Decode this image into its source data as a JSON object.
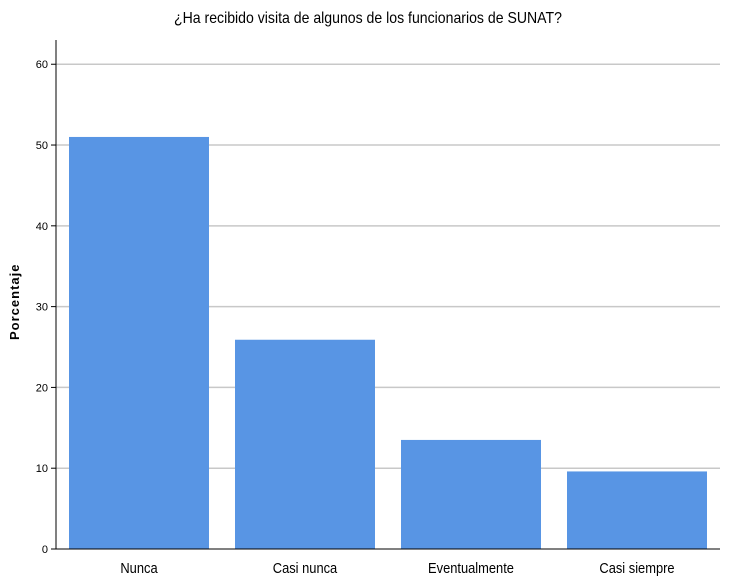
{
  "chart_data": {
    "type": "bar",
    "title": "¿Ha recibido visita de algunos de los funcionarios de SUNAT?",
    "xlabel": "",
    "ylabel": "Porcentaje",
    "categories": [
      "Nunca",
      "Casi nunca",
      "Eventualmente",
      "Casi siempre"
    ],
    "values": [
      51.0,
      25.9,
      13.5,
      9.6
    ],
    "ylim": [
      0,
      63
    ],
    "yticks": [
      0,
      10,
      20,
      30,
      40,
      50,
      60
    ],
    "grid": true,
    "bar_color": "#5895e4",
    "grid_color": "#c8c8c8"
  }
}
